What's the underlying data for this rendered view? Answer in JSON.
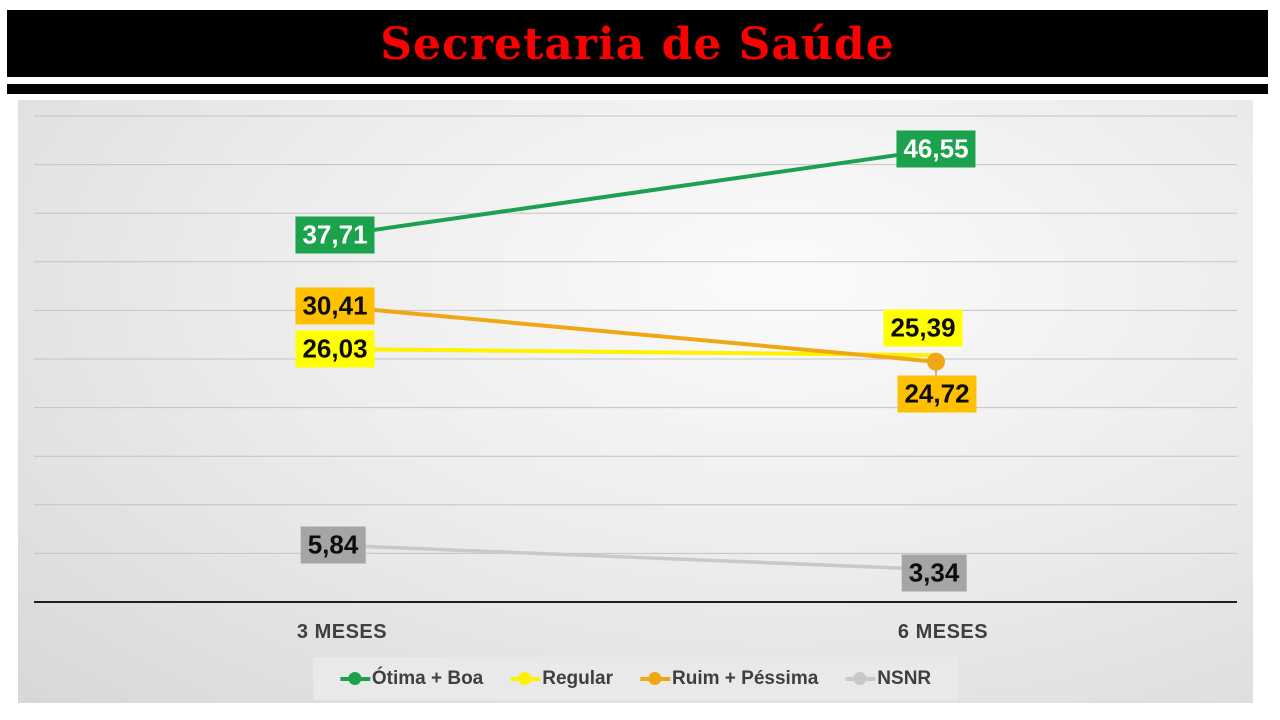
{
  "header": {
    "title": "Secretaria de Saúde",
    "bar_color": "#000000",
    "title_color": "#fb0000"
  },
  "chart_data": {
    "type": "line",
    "categories": [
      "3 MESES",
      "6 MESES"
    ],
    "series": [
      {
        "name": "Ótima + Boa",
        "values": [
          37.71,
          46.55
        ],
        "labels": [
          "37,71",
          "46,55"
        ],
        "line_color": "#1ca24c",
        "label_bg": "#1ca24c",
        "label_text_color": "#ffffff",
        "stroke_width": 4,
        "label_offsets": [
          [
            0,
            0
          ],
          [
            0,
            -1
          ]
        ]
      },
      {
        "name": "Regular",
        "values": [
          26.03,
          25.39
        ],
        "labels": [
          "26,03",
          "25,39"
        ],
        "line_color": "#fdf200",
        "label_bg": "#ffff00",
        "label_text_color": "#0d0d0d",
        "stroke_width": 4,
        "label_offsets": [
          [
            0,
            0
          ],
          [
            -13,
            -27
          ]
        ]
      },
      {
        "name": "Ruim + Péssima",
        "values": [
          30.41,
          24.72
        ],
        "labels": [
          "30,41",
          "24,72"
        ],
        "line_color": "#efa713",
        "label_bg": "#ffc000",
        "label_text_color": "#0d0d0d",
        "stroke_width": 4,
        "label_offsets": [
          [
            0,
            0
          ],
          [
            1,
            32
          ]
        ],
        "marker": {
          "point": 1,
          "shape": "circle",
          "leader": true
        }
      },
      {
        "name": "NSNR",
        "values": [
          5.84,
          3.34
        ],
        "labels": [
          "5,84",
          "3,34"
        ],
        "line_color": "#c9c9c9",
        "label_bg": "#a5a5a5",
        "label_text_color": "#0d0d0d",
        "stroke_width": 3.5,
        "label_offsets": [
          [
            -2,
            0
          ],
          [
            -2,
            3
          ]
        ]
      }
    ],
    "ylim": [
      0,
      51.7
    ],
    "gridlines": {
      "step": 5,
      "max": 50,
      "color": "#c3c3c3"
    },
    "axis_line_color": "#1f1f1f",
    "axis_text_color": "#3f3f3f",
    "legend_position": "bottom",
    "legend_bg": "#e9e9e9",
    "plot_bg_inner": "#fbfbfb",
    "plot_bg_outer": "#d2d2d2"
  }
}
